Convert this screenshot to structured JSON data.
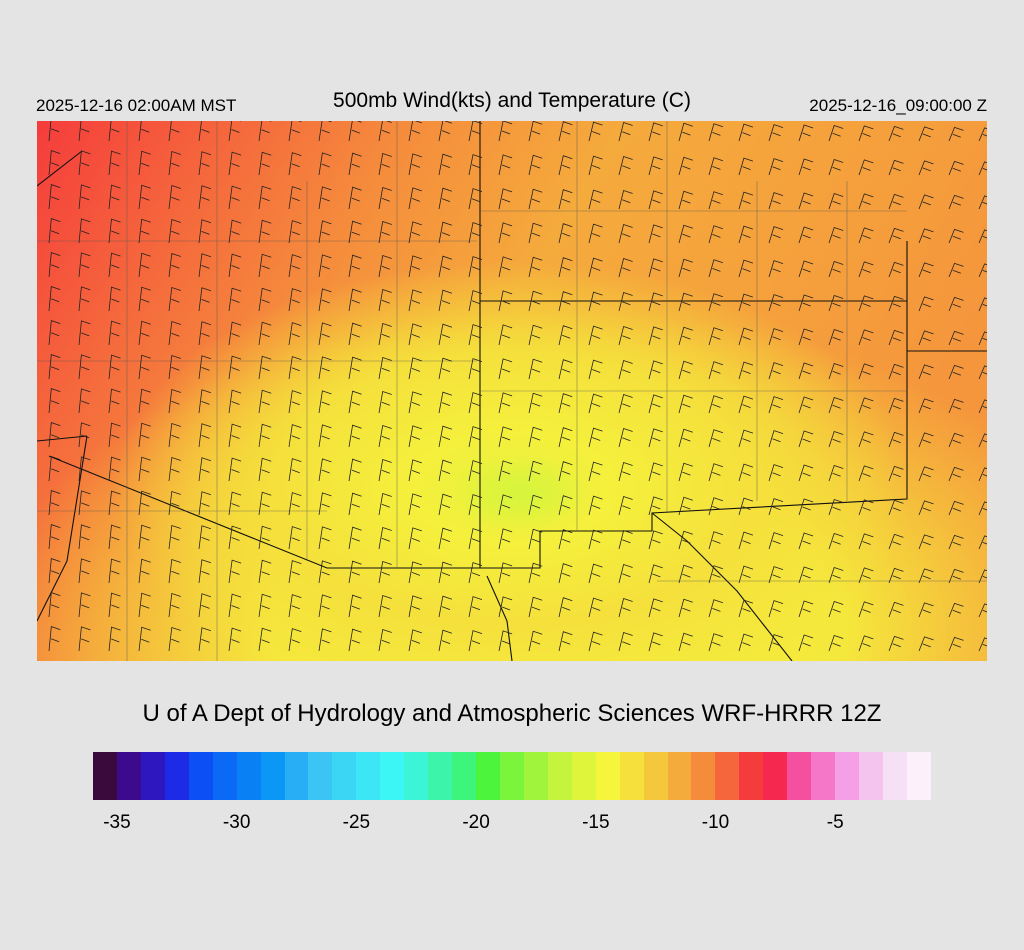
{
  "header": {
    "local_time": "2025-12-16 02:00AM MST",
    "title": "500mb Wind(kts) and Temperature (C)",
    "valid_time": "2025-12-16_09:00:00 Z"
  },
  "credit": "U of A Dept of Hydrology and Atmospheric Sciences WRF-HRRR 12Z",
  "colorbar": {
    "colors": [
      "#3a0a3c",
      "#3c0a8c",
      "#2f17bf",
      "#1e2be6",
      "#0b4ff5",
      "#0a6af5",
      "#0a80f5",
      "#0a97f5",
      "#28aef5",
      "#3cc4f5",
      "#3cd6f5",
      "#3ce6f5",
      "#3cf5f5",
      "#3cf5d6",
      "#3cf5aa",
      "#3cf57a",
      "#4cf53c",
      "#7af53c",
      "#a0f53c",
      "#c4f53c",
      "#def53c",
      "#f5f53c",
      "#f5e03c",
      "#f5c83c",
      "#f5aa3c",
      "#f58c3c",
      "#f5663c",
      "#f53c3c",
      "#f52850",
      "#f550a0",
      "#f578c8",
      "#f5a0e6",
      "#f5c4ee",
      "#f5e0f5",
      "#fcf0fa"
    ],
    "ticks": [
      "-35",
      "-30",
      "-25",
      "-20",
      "-15",
      "-10",
      "-5"
    ],
    "tick_values": [
      -35,
      -30,
      -25,
      -20,
      -15,
      -10,
      -5
    ],
    "value_min": -36,
    "value_max": -1
  }
}
